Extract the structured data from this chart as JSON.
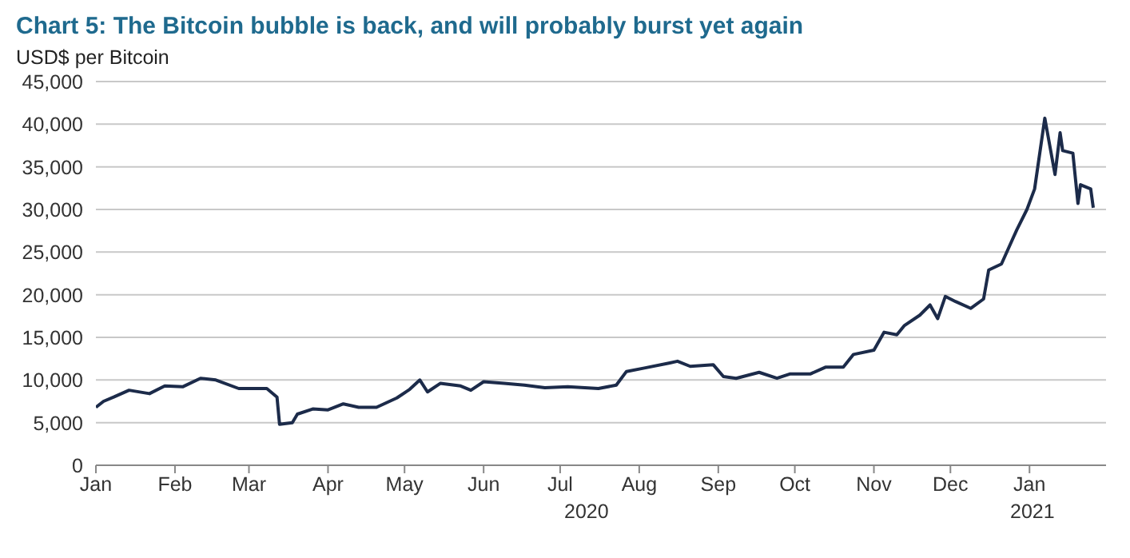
{
  "chart_data": {
    "type": "line",
    "title": "Chart 5: The Bitcoin bubble is back, and will probably burst yet again",
    "ylabel": "USD$ per Bitcoin",
    "x": [
      "2020-01-01",
      "2020-01-04",
      "2020-01-08",
      "2020-01-14",
      "2020-01-22",
      "2020-01-28",
      "2020-02-04",
      "2020-02-11",
      "2020-02-17",
      "2020-02-26",
      "2020-03-08",
      "2020-03-12",
      "2020-03-13",
      "2020-03-18",
      "2020-03-20",
      "2020-03-26",
      "2020-04-01",
      "2020-04-07",
      "2020-04-13",
      "2020-04-20",
      "2020-04-28",
      "2020-05-03",
      "2020-05-07",
      "2020-05-10",
      "2020-05-15",
      "2020-05-23",
      "2020-05-27",
      "2020-06-01",
      "2020-06-09",
      "2020-06-17",
      "2020-06-25",
      "2020-07-04",
      "2020-07-16",
      "2020-07-23",
      "2020-07-27",
      "2020-08-03",
      "2020-08-13",
      "2020-08-16",
      "2020-08-21",
      "2020-08-30",
      "2020-09-03",
      "2020-09-08",
      "2020-09-17",
      "2020-09-24",
      "2020-09-29",
      "2020-10-07",
      "2020-10-13",
      "2020-10-20",
      "2020-10-24",
      "2020-11-01",
      "2020-11-05",
      "2020-11-10",
      "2020-11-13",
      "2020-11-19",
      "2020-11-23",
      "2020-11-26",
      "2020-11-29",
      "2020-12-03",
      "2020-12-09",
      "2020-12-14",
      "2020-12-16",
      "2020-12-21",
      "2020-12-27",
      "2020-12-31",
      "2021-01-03",
      "2021-01-07",
      "2021-01-11",
      "2021-01-13",
      "2021-01-14",
      "2021-01-18",
      "2021-01-20",
      "2021-01-21",
      "2021-01-25",
      "2021-01-26"
    ],
    "series": [
      {
        "color": "#1c2b4a",
        "values": [
          6800,
          7500,
          8000,
          8800,
          8400,
          9300,
          9200,
          10200,
          10000,
          9000,
          9000,
          8000,
          4800,
          5000,
          6000,
          6600,
          6500,
          7200,
          6800,
          6800,
          7900,
          8900,
          10000,
          8600,
          9600,
          9300,
          8800,
          9800,
          9600,
          9400,
          9100,
          9200,
          9000,
          9400,
          11000,
          11400,
          12000,
          12200,
          11600,
          11800,
          10400,
          10200,
          10900,
          10200,
          10700,
          10700,
          11500,
          11500,
          13000,
          13500,
          15600,
          15300,
          16400,
          17600,
          18800,
          17200,
          19800,
          19200,
          18400,
          19500,
          22900,
          23600,
          27600,
          30000,
          32400,
          40700,
          34100,
          39000,
          36900,
          36600,
          30700,
          32900,
          32400,
          30200
        ]
      }
    ],
    "xlim": [
      "2020-01-01",
      "2021-01-31"
    ],
    "xticks": [
      {
        "value": "2020-01-01",
        "label": "Jan"
      },
      {
        "value": "2020-02-01",
        "label": "Feb"
      },
      {
        "value": "2020-03-01",
        "label": "Mar"
      },
      {
        "value": "2020-04-01",
        "label": "Apr"
      },
      {
        "value": "2020-05-01",
        "label": "May"
      },
      {
        "value": "2020-06-01",
        "label": "Jun"
      },
      {
        "value": "2020-07-01",
        "label": "Jul"
      },
      {
        "value": "2020-08-01",
        "label": "Aug"
      },
      {
        "value": "2020-09-01",
        "label": "Sep"
      },
      {
        "value": "2020-10-01",
        "label": "Oct"
      },
      {
        "value": "2020-11-01",
        "label": "Nov"
      },
      {
        "value": "2020-12-01",
        "label": "Dec"
      },
      {
        "value": "2021-01-01",
        "label": "Jan"
      }
    ],
    "ylim": [
      0,
      45000
    ],
    "yticks": [
      0,
      {
        "value": 5000,
        "label": "5,000"
      },
      {
        "value": 10000,
        "label": "10,000"
      },
      {
        "value": 15000,
        "label": "15,000"
      },
      {
        "value": 20000,
        "label": "20,000"
      },
      {
        "value": 25000,
        "label": "25,000"
      },
      {
        "value": 30000,
        "label": "30,000"
      },
      {
        "value": 35000,
        "label": "35,000"
      },
      {
        "value": 40000,
        "label": "40,000"
      },
      {
        "value": 45000,
        "label": "45,000"
      }
    ],
    "annotations": [
      "2020",
      "2021"
    ],
    "grid": "y",
    "legend": false,
    "marker": "none",
    "line_style": "solid"
  }
}
